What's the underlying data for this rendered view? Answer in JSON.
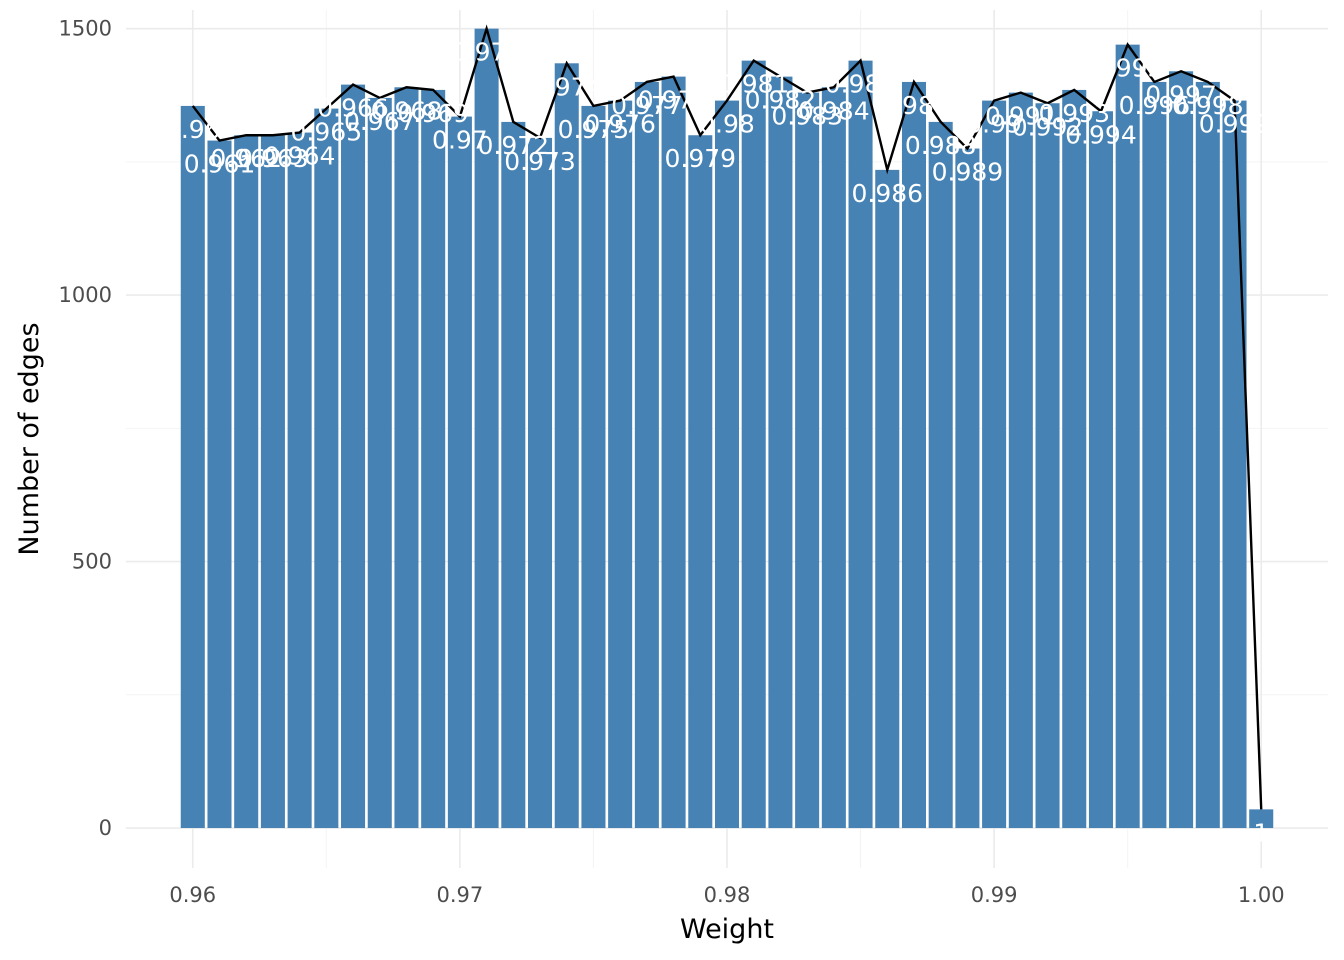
{
  "chart_data": {
    "type": "bar",
    "title": "",
    "xlabel": "Weight",
    "ylabel": "Number of edges",
    "xlim": [
      0.9575,
      1.0025
    ],
    "ylim": [
      -75,
      1535
    ],
    "grid": true,
    "legend": "none",
    "bar_color": "#4682b4",
    "line_color": "#000000",
    "x_ticks": [
      {
        "value": 0.96,
        "label": "0.96"
      },
      {
        "value": 0.97,
        "label": "0.97"
      },
      {
        "value": 0.98,
        "label": "0.98"
      },
      {
        "value": 0.99,
        "label": "0.99"
      },
      {
        "value": 1.0,
        "label": "1.00"
      }
    ],
    "y_ticks": [
      {
        "value": 0,
        "label": "0"
      },
      {
        "value": 500,
        "label": "500"
      },
      {
        "value": 1000,
        "label": "1000"
      },
      {
        "value": 1500,
        "label": "1500"
      }
    ],
    "x": [
      0.96,
      0.961,
      0.962,
      0.963,
      0.964,
      0.965,
      0.966,
      0.967,
      0.968,
      0.969,
      0.97,
      0.971,
      0.972,
      0.973,
      0.974,
      0.975,
      0.976,
      0.977,
      0.978,
      0.979,
      0.98,
      0.981,
      0.982,
      0.983,
      0.984,
      0.985,
      0.986,
      0.987,
      0.988,
      0.989,
      0.99,
      0.991,
      0.992,
      0.993,
      0.994,
      0.995,
      0.996,
      0.997,
      0.998,
      0.999,
      1.0
    ],
    "values": [
      1355,
      1290,
      1300,
      1300,
      1305,
      1350,
      1395,
      1370,
      1390,
      1385,
      1335,
      1500,
      1325,
      1295,
      1435,
      1355,
      1365,
      1400,
      1410,
      1300,
      1365,
      1440,
      1410,
      1380,
      1390,
      1440,
      1235,
      1400,
      1325,
      1275,
      1365,
      1380,
      1360,
      1385,
      1345,
      1470,
      1400,
      1420,
      1400,
      1365,
      35
    ],
    "labels": [
      "0.96",
      "0.961",
      "0.962",
      "0.963",
      "0.964",
      "0.965",
      "0.966",
      "0.967",
      "0.968",
      "0.969",
      "0.97",
      "0.971",
      "0.972",
      "0.973",
      "0.974",
      "0.975",
      "0.976",
      "0.977",
      "0.978",
      "0.979",
      "0.98",
      "0.981",
      "0.982",
      "0.983",
      "0.984",
      "0.985",
      "0.986",
      "0.987",
      "0.988",
      "0.989",
      "0.99",
      "0.991",
      "0.992",
      "0.993",
      "0.994",
      "0.995",
      "0.996",
      "0.997",
      "0.998",
      "0.999",
      "1"
    ]
  }
}
